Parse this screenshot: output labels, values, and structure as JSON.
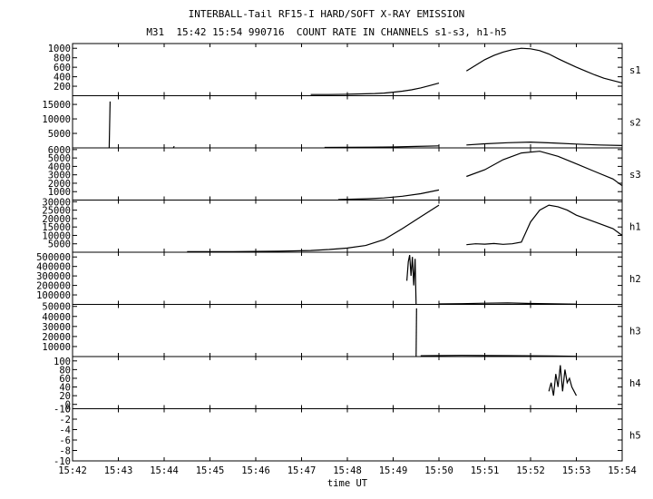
{
  "title": "INTERBALL-Tail RF15-I HARD/SOFT X-RAY EMISSION",
  "subtitle": "M31  15:42 15:54 990716  COUNT RATE IN CHANNELS s1-s3, h1-h5",
  "chart_data": {
    "type": "line",
    "xlabel": "time UT",
    "x_ticks": [
      "15:42",
      "15:43",
      "15:44",
      "15:45",
      "15:46",
      "15:47",
      "15:48",
      "15:49",
      "15:50",
      "15:51",
      "15:52",
      "15:53",
      "15:54"
    ],
    "xlim_minutes": [
      0,
      12
    ],
    "grid": false,
    "panels": [
      {
        "name": "s1",
        "ylim": [
          0,
          1100
        ],
        "y_ticks": [
          200,
          400,
          600,
          800,
          1000
        ],
        "y_tick_labels": [
          "200",
          "400",
          "600",
          "800",
          "1000"
        ],
        "series": [
          {
            "x": [
              5.2,
              5.6,
              6.0,
              6.6,
              6.8,
              7.0,
              7.2,
              7.4,
              7.6,
              7.8,
              8.0
            ],
            "y": [
              25,
              25,
              30,
              45,
              55,
              75,
              95,
              125,
              165,
              215,
              265
            ]
          },
          {
            "x": [
              8.6,
              8.8,
              9.0,
              9.2,
              9.4,
              9.6,
              9.8,
              10.0,
              10.2,
              10.4,
              10.6,
              10.8,
              11.0,
              11.2,
              11.4,
              11.6,
              11.8,
              12.0
            ],
            "y": [
              520,
              640,
              760,
              850,
              920,
              970,
              1000,
              990,
              950,
              880,
              780,
              690,
              600,
              520,
              440,
              370,
              320,
              270
            ]
          }
        ]
      },
      {
        "name": "s2",
        "ylim": [
          0,
          18000
        ],
        "y_ticks": [
          5000,
          10000,
          15000
        ],
        "y_tick_labels": [
          "5000",
          "10000",
          "15000"
        ],
        "series": [
          {
            "x": [
              0.8,
              0.82
            ],
            "y": [
              0,
              16000
            ]
          },
          {
            "x": [
              2.2,
              2.22
            ],
            "y": [
              0,
              600
            ]
          },
          {
            "x": [
              5.5,
              6.0,
              6.5,
              7.0,
              7.5,
              8.0
            ],
            "y": [
              150,
              200,
              250,
              300,
              500,
              700
            ]
          },
          {
            "x": [
              8.6,
              9.0,
              9.5,
              10.0,
              10.5,
              11.0,
              11.5,
              12.0
            ],
            "y": [
              1000,
              1400,
              1800,
              2000,
              1700,
              1300,
              1000,
              800
            ]
          }
        ]
      },
      {
        "name": "s3",
        "ylim": [
          0,
          6200
        ],
        "y_ticks": [
          1000,
          2000,
          3000,
          4000,
          5000,
          6000
        ],
        "y_tick_labels": [
          "1000",
          "2000",
          "3000",
          "4000",
          "5000",
          "6000"
        ],
        "series": [
          {
            "x": [
              5.8,
              6.4,
              6.8,
              7.2,
              7.6,
              8.0
            ],
            "y": [
              50,
              150,
              250,
              450,
              750,
              1200
            ]
          },
          {
            "x": [
              8.6,
              9.0,
              9.4,
              9.8,
              10.2,
              10.6,
              11.0,
              11.4,
              11.8,
              12.0
            ],
            "y": [
              2800,
              3600,
              4800,
              5600,
              5800,
              5200,
              4300,
              3400,
              2500,
              1700
            ]
          }
        ]
      },
      {
        "name": "h1",
        "ylim": [
          0,
          31000
        ],
        "y_ticks": [
          5000,
          10000,
          15000,
          20000,
          25000,
          30000
        ],
        "y_tick_labels": [
          "5000",
          "10000",
          "15000",
          "20000",
          "25000",
          "30000"
        ],
        "series": [
          {
            "x": [
              2.5,
              3.5,
              4.5,
              5.2,
              5.6,
              6.0,
              6.4,
              6.8,
              7.2,
              7.6,
              8.0
            ],
            "y": [
              300,
              400,
              600,
              1000,
              1600,
              2500,
              4000,
              7500,
              14000,
              21000,
              28000
            ]
          },
          {
            "x": [
              8.6,
              8.8,
              9.0,
              9.2,
              9.4,
              9.6,
              9.8,
              10.0,
              10.2,
              10.4,
              10.6,
              10.8,
              11.0,
              11.4,
              11.8,
              12.0
            ],
            "y": [
              4500,
              5000,
              4800,
              5200,
              4700,
              5000,
              6000,
              18000,
              25000,
              28000,
              27000,
              25000,
              22000,
              18000,
              14000,
              10000
            ]
          }
        ]
      },
      {
        "name": "h2",
        "ylim": [
          0,
          550000
        ],
        "y_ticks": [
          100000,
          200000,
          300000,
          400000,
          500000
        ],
        "y_tick_labels": [
          "100000",
          "200000",
          "300000",
          "400000",
          "500000"
        ],
        "series": [
          {
            "x": [
              7.3,
              7.33,
              7.36,
              7.39,
              7.42,
              7.45,
              7.48,
              7.5
            ],
            "y": [
              250000,
              450000,
              520000,
              300000,
              500000,
              200000,
              480000,
              0
            ]
          },
          {
            "x": [
              8.0,
              8.5,
              9.0,
              9.5,
              10.0,
              10.5,
              11.0
            ],
            "y": [
              5000,
              8000,
              12000,
              15000,
              10000,
              6000,
              3000
            ]
          }
        ]
      },
      {
        "name": "h3",
        "ylim": [
          0,
          52000
        ],
        "y_ticks": [
          10000,
          20000,
          30000,
          40000,
          50000
        ],
        "y_tick_labels": [
          "10000",
          "20000",
          "30000",
          "40000",
          "50000"
        ],
        "series": [
          {
            "x": [
              7.5,
              7.51
            ],
            "y": [
              0,
              48000
            ]
          },
          {
            "x": [
              7.6,
              8.5,
              9.5,
              10.5,
              11.0
            ],
            "y": [
              800,
              1200,
              900,
              600,
              300
            ]
          }
        ]
      },
      {
        "name": "h4",
        "ylim": [
          -10,
          110
        ],
        "y_ticks": [
          -10,
          0,
          20,
          40,
          60,
          80,
          100
        ],
        "y_tick_labels": [
          "-10",
          "0",
          "20",
          "40",
          "60",
          "80",
          "100"
        ],
        "series": [
          {
            "x": [
              10.4,
              10.45,
              10.5,
              10.55,
              10.6,
              10.65,
              10.7,
              10.75,
              10.8,
              10.85,
              10.9,
              10.95,
              11.0
            ],
            "y": [
              30,
              50,
              20,
              70,
              40,
              90,
              30,
              80,
              50,
              60,
              40,
              30,
              20
            ]
          }
        ]
      },
      {
        "name": "h5",
        "ylim": [
          -10,
          0
        ],
        "y_ticks": [
          -10,
          -8,
          -6,
          -4,
          -2,
          0
        ],
        "y_tick_labels": [
          "-10",
          "-8",
          "-6",
          "-4",
          "-2",
          "0"
        ],
        "series": []
      }
    ]
  }
}
